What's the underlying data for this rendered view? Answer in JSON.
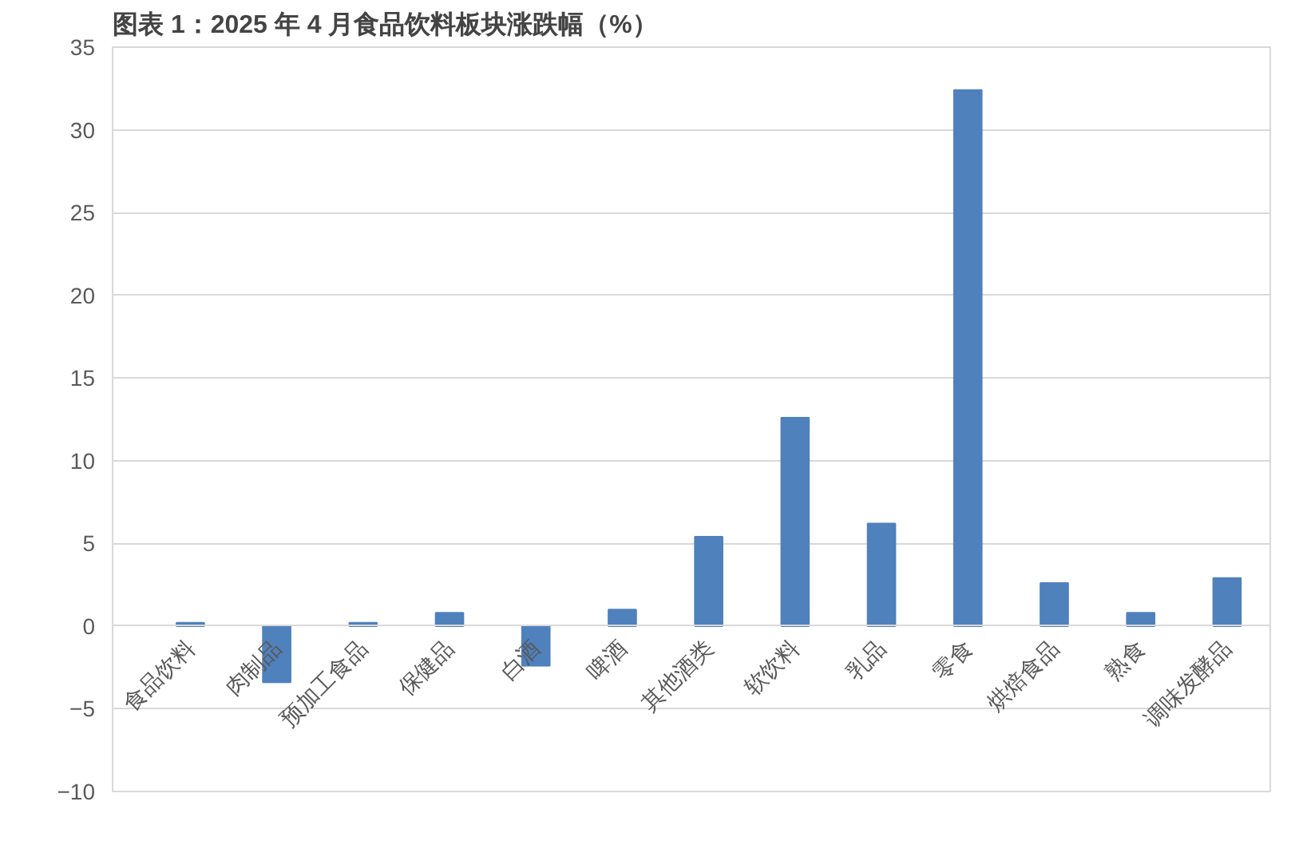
{
  "chart_data": {
    "type": "bar",
    "title": "图表 1：2025 年 4 月食品饮料板块涨跌幅（%）",
    "categories": [
      "食品饮料",
      "肉制品",
      "预加工食品",
      "保健品",
      "白酒",
      "啤酒",
      "其他酒类",
      "软饮料",
      "乳品",
      "零食",
      "烘焙食品",
      "熟食",
      "调味发酵品"
    ],
    "values": [
      0.2,
      -3.4,
      0.2,
      0.8,
      -2.4,
      1.0,
      5.4,
      12.6,
      6.2,
      32.4,
      2.6,
      0.8,
      2.9
    ],
    "color": "#4f81bd",
    "ylim": [
      -10,
      35
    ],
    "yticks": [
      -10,
      -5,
      0,
      5,
      10,
      15,
      20,
      25,
      30,
      35
    ],
    "grid": "y"
  }
}
